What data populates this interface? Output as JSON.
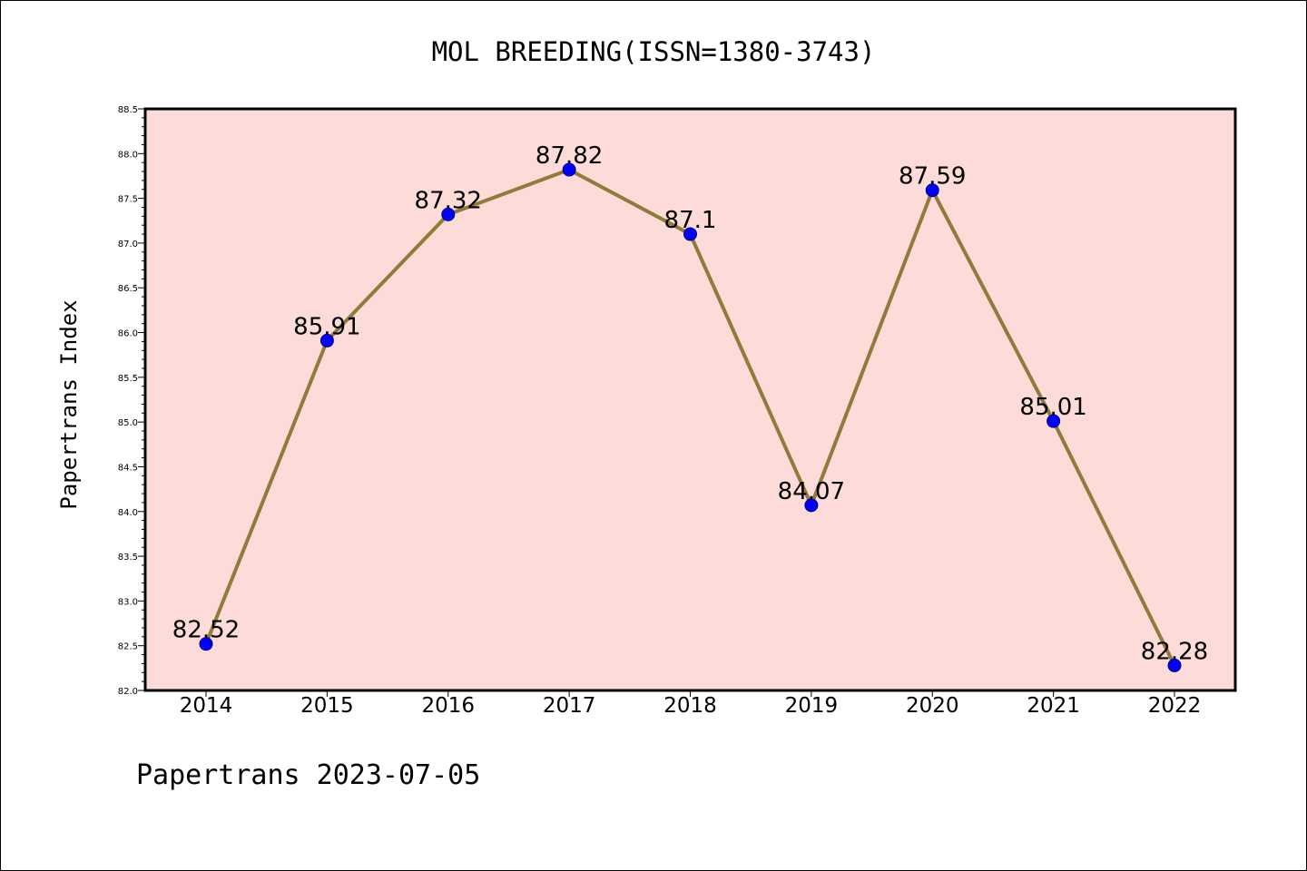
{
  "colors": {
    "plot_background": "#fddbd8",
    "line": "#8f7b3a",
    "marker_fill": "#0000ff",
    "marker_edge": "#000080",
    "axis": "#000000"
  },
  "chart_data": {
    "type": "line",
    "title": "MOL BREEDING(ISSN=1380-3743)",
    "xlabel": "",
    "ylabel": "Papertrans Index",
    "categories": [
      "2014",
      "2015",
      "2016",
      "2017",
      "2018",
      "2019",
      "2020",
      "2021",
      "2022"
    ],
    "series": [
      {
        "values": [
          82.52,
          85.91,
          87.32,
          87.82,
          87.1,
          84.07,
          87.59,
          85.01,
          82.28
        ],
        "data_labels": [
          "82.52",
          "85.91",
          "87.32",
          "87.82",
          "87.1",
          "84.07",
          "87.59",
          "85.01",
          "82.28"
        ]
      }
    ],
    "ylim": [
      82.0,
      88.5
    ],
    "yticks": [
      "82.0",
      "82.5",
      "83.0",
      "83.5",
      "84.0",
      "84.5",
      "85.0",
      "85.5",
      "86.0",
      "86.5",
      "87.0",
      "87.5",
      "88.0",
      "88.5"
    ],
    "grid": false,
    "legend": "none"
  },
  "footer": {
    "text": "Papertrans 2023-07-05"
  }
}
